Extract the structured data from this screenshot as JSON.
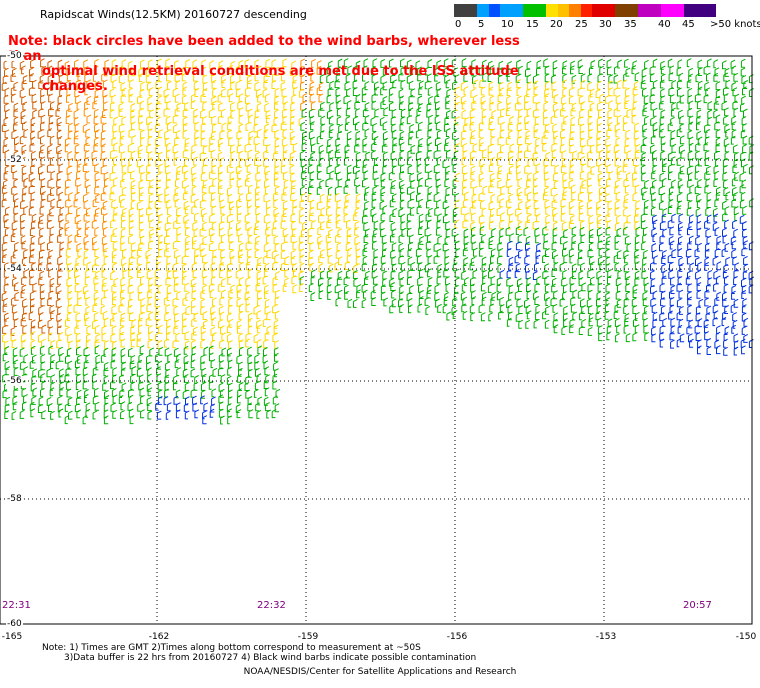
{
  "title": "Rapidscat Winds(12.5KM) 20160727 descending",
  "note": {
    "line1": "Note: black circles have been added to the wind barbs, wherever less than",
    "line2": "optimal wind retrieval conditions are met due to the ISS attitude changes."
  },
  "legend": {
    "unit": ">50 knots",
    "labels": [
      "0",
      "5",
      "10",
      "15",
      "20",
      "25",
      "30",
      "35",
      "40",
      "45"
    ],
    "colors": [
      "#404040",
      "#808080",
      "#00a0ff",
      "#0040ff",
      "#00c000",
      "#00c000",
      "#ffe000",
      "#ffc000",
      "#ff8000",
      "#ff2000",
      "#e00000",
      "#804000",
      "#c000c0",
      "#ff00ff"
    ]
  },
  "axes": {
    "lat_labels": [
      "-50",
      "-52",
      "-54",
      "-56",
      "-58",
      "-60"
    ],
    "lon_labels": [
      "-165",
      "-162",
      "-159",
      "-156",
      "-153",
      "-150"
    ]
  },
  "times": [
    "22:31",
    "22:32",
    "20:57"
  ],
  "footnote": {
    "line1": "Note: 1) Times are GMT 2)Times along bottom correspond to measurement at ~50S",
    "line2": "3)Data buffer is 22 hrs from 20160727 4) Black wind barbs indicate possible contamination"
  },
  "credit": "NOAA/NESDIS/Center for Satellite Applications and Research",
  "colors": {
    "low": "#0030e0",
    "moderate": "#00b000",
    "strong": "#ffd800",
    "high": "#ff9000",
    "very_high": "#d06000"
  }
}
